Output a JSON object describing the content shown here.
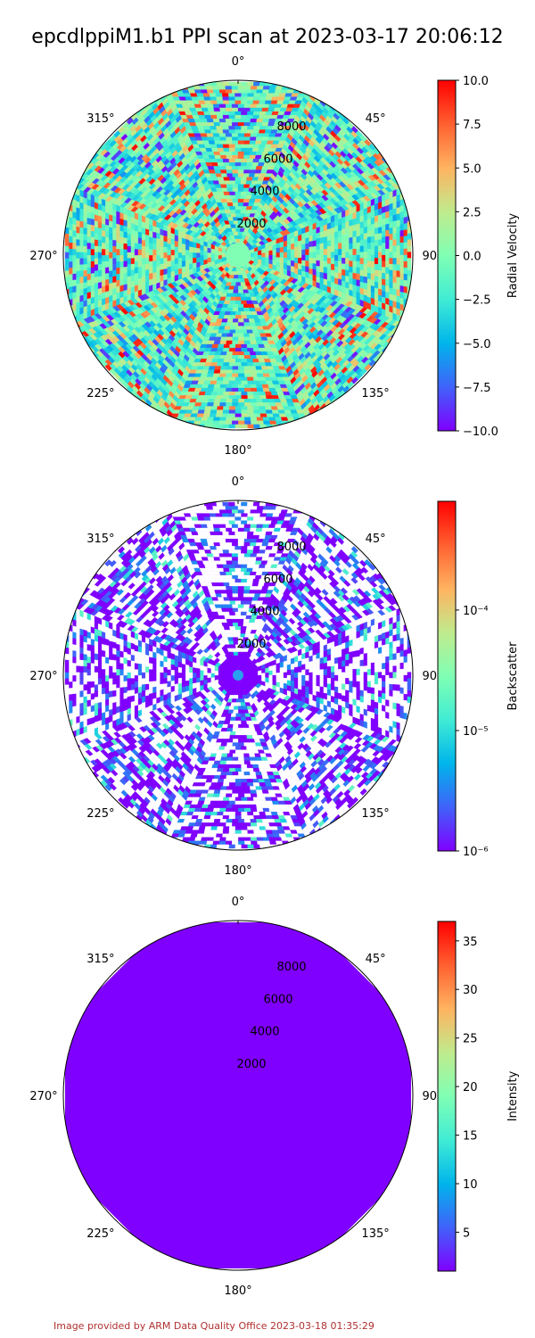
{
  "title": "epcdlppiM1.b1 PPI scan at 2023-03-17 20:06:12",
  "footer": "Image provided by ARM Data Quality Office 2023-03-18 01:35:29",
  "colors": {
    "credit": "#b03030",
    "colormap": [
      "#8000ff",
      "#4062fa",
      "#00b5eb",
      "#40ecd4",
      "#80ffb4",
      "#c0eb8d",
      "#ffb360",
      "#ff6030",
      "#ff0000"
    ]
  },
  "chart_data": [
    {
      "type": "ppi",
      "field": "Radial Velocity",
      "angle_labels": [
        "0°",
        "45°",
        "90°",
        "135°",
        "180°",
        "225°",
        "270°",
        "315°"
      ],
      "range_labels": [
        "2000",
        "4000",
        "6000",
        "8000"
      ],
      "range_ticks": [
        2000,
        4000,
        6000,
        8000
      ],
      "rmax": 10000,
      "colorbar": {
        "label": "Radial Velocity",
        "scale": "linear",
        "vmin": -10.0,
        "vmax": 10.0,
        "ticks": [
          10.0,
          7.5,
          5.0,
          2.5,
          0.0,
          -2.5,
          -5.0,
          -7.5,
          -10.0
        ],
        "tick_labels": [
          "10.0",
          "7.5",
          "5.0",
          "2.5",
          "0.0",
          "−2.5",
          "−5.0",
          "−7.5",
          "−10.0"
        ]
      },
      "pattern": "noisy"
    },
    {
      "type": "ppi",
      "field": "Backscatter",
      "angle_labels": [
        "0°",
        "45°",
        "90°",
        "135°",
        "180°",
        "225°",
        "270°",
        "315°"
      ],
      "range_labels": [
        "2000",
        "4000",
        "6000",
        "8000"
      ],
      "range_ticks": [
        2000,
        4000,
        6000,
        8000
      ],
      "rmax": 10000,
      "colorbar": {
        "label": "Backscatter",
        "scale": "log",
        "vmin": 1e-06,
        "vmax": 0.0008,
        "ticks": [
          0.0001,
          1e-05,
          1e-06
        ],
        "tick_labels": [
          "10⁻⁴",
          "10⁻⁵",
          "10⁻⁶"
        ]
      },
      "pattern": "low"
    },
    {
      "type": "ppi",
      "field": "Intensity",
      "angle_labels": [
        "0°",
        "45°",
        "90°",
        "135°",
        "180°",
        "225°",
        "270°",
        "315°"
      ],
      "range_labels": [
        "2000",
        "4000",
        "6000",
        "8000"
      ],
      "range_ticks": [
        2000,
        4000,
        6000,
        8000
      ],
      "rmax": 10000,
      "colorbar": {
        "label": "Intensity",
        "scale": "linear",
        "vmin": 1.0,
        "vmax": 37.0,
        "ticks": [
          35,
          30,
          25,
          20,
          15,
          10,
          5
        ],
        "tick_labels": [
          "35",
          "30",
          "25",
          "20",
          "15",
          "10",
          "5"
        ]
      },
      "pattern": "uniform"
    }
  ]
}
